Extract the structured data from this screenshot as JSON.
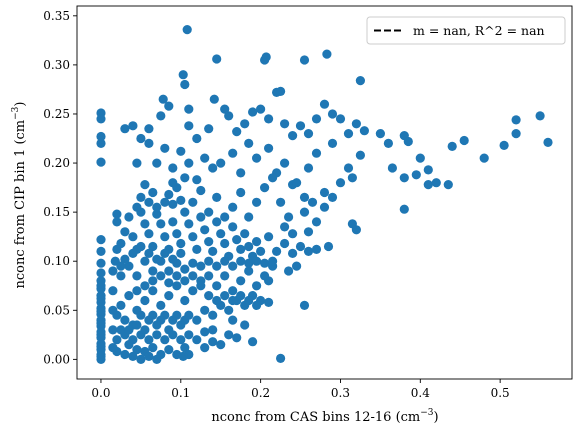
{
  "chart_data": {
    "type": "scatter",
    "title": "",
    "xlabel": {
      "main": "nconc from CAS bins 12-16 (cm",
      "sup": "−3",
      "end": ")"
    },
    "ylabel": {
      "main": "nconc from CIP bin 1 (cm",
      "sup": "−3",
      "end": ")"
    },
    "xlim": [
      -0.03,
      0.59
    ],
    "ylim": [
      -0.02,
      0.36
    ],
    "xticks": [
      0.0,
      0.1,
      0.2,
      0.3,
      0.4,
      0.5
    ],
    "xtick_labels": [
      "0.0",
      "0.1",
      "0.2",
      "0.3",
      "0.4",
      "0.5"
    ],
    "yticks": [
      0.0,
      0.05,
      0.1,
      0.15,
      0.2,
      0.25,
      0.3,
      0.35
    ],
    "ytick_labels": [
      "0.00",
      "0.05",
      "0.10",
      "0.15",
      "0.20",
      "0.25",
      "0.30",
      "0.35"
    ],
    "grid": false,
    "legend": {
      "placement": "top-right",
      "entries": [
        {
          "label": "m = nan, R^2 = nan",
          "style": "dashed-line",
          "color": "#000000"
        }
      ]
    },
    "marker_color": "#1f77b4",
    "points": [
      [
        0.0,
        0.251
      ],
      [
        0.0,
        0.245
      ],
      [
        0.0,
        0.227
      ],
      [
        0.0,
        0.22
      ],
      [
        0.0,
        0.201
      ],
      [
        0.0,
        0.122
      ],
      [
        0.0,
        0.11
      ],
      [
        0.0,
        0.098
      ],
      [
        0.0,
        0.088
      ],
      [
        0.0,
        0.08
      ],
      [
        0.0,
        0.072
      ],
      [
        0.0,
        0.065
      ],
      [
        0.0,
        0.058
      ],
      [
        0.0,
        0.052
      ],
      [
        0.0,
        0.046
      ],
      [
        0.0,
        0.04
      ],
      [
        0.0,
        0.034
      ],
      [
        0.0,
        0.028
      ],
      [
        0.0,
        0.022
      ],
      [
        0.0,
        0.016
      ],
      [
        0.0,
        0.01
      ],
      [
        0.0,
        0.005
      ],
      [
        0.0,
        0.0
      ],
      [
        0.0,
        0.003
      ],
      [
        0.0,
        0.013
      ],
      [
        0.0,
        0.025
      ],
      [
        0.0,
        0.037
      ],
      [
        0.0,
        0.049
      ],
      [
        0.0,
        0.062
      ],
      [
        0.0,
        0.075
      ],
      [
        0.108,
        0.336
      ],
      [
        0.145,
        0.306
      ],
      [
        0.205,
        0.305
      ],
      [
        0.207,
        0.308
      ],
      [
        0.255,
        0.305
      ],
      [
        0.283,
        0.311
      ],
      [
        0.325,
        0.284
      ],
      [
        0.03,
        0.235
      ],
      [
        0.04,
        0.238
      ],
      [
        0.06,
        0.235
      ],
      [
        0.075,
        0.248
      ],
      [
        0.078,
        0.265
      ],
      [
        0.085,
        0.258
      ],
      [
        0.103,
        0.29
      ],
      [
        0.105,
        0.28
      ],
      [
        0.11,
        0.255
      ],
      [
        0.11,
        0.238
      ],
      [
        0.12,
        0.225
      ],
      [
        0.135,
        0.235
      ],
      [
        0.142,
        0.265
      ],
      [
        0.155,
        0.255
      ],
      [
        0.16,
        0.248
      ],
      [
        0.17,
        0.232
      ],
      [
        0.18,
        0.24
      ],
      [
        0.19,
        0.252
      ],
      [
        0.2,
        0.255
      ],
      [
        0.21,
        0.245
      ],
      [
        0.22,
        0.272
      ],
      [
        0.225,
        0.273
      ],
      [
        0.23,
        0.24
      ],
      [
        0.24,
        0.228
      ],
      [
        0.25,
        0.238
      ],
      [
        0.26,
        0.23
      ],
      [
        0.27,
        0.245
      ],
      [
        0.28,
        0.26
      ],
      [
        0.29,
        0.25
      ],
      [
        0.3,
        0.245
      ],
      [
        0.31,
        0.23
      ],
      [
        0.32,
        0.24
      ],
      [
        0.325,
        0.208
      ],
      [
        0.315,
        0.185
      ],
      [
        0.3,
        0.18
      ],
      [
        0.28,
        0.17
      ],
      [
        0.255,
        0.165
      ],
      [
        0.24,
        0.178
      ],
      [
        0.23,
        0.2
      ],
      [
        0.22,
        0.19
      ],
      [
        0.21,
        0.215
      ],
      [
        0.195,
        0.205
      ],
      [
        0.185,
        0.22
      ],
      [
        0.175,
        0.19
      ],
      [
        0.165,
        0.21
      ],
      [
        0.15,
        0.2
      ],
      [
        0.14,
        0.195
      ],
      [
        0.13,
        0.205
      ],
      [
        0.12,
        0.183
      ],
      [
        0.11,
        0.2
      ],
      [
        0.1,
        0.212
      ],
      [
        0.09,
        0.195
      ],
      [
        0.08,
        0.215
      ],
      [
        0.07,
        0.2
      ],
      [
        0.06,
        0.22
      ],
      [
        0.05,
        0.225
      ],
      [
        0.045,
        0.2
      ],
      [
        0.055,
        0.178
      ],
      [
        0.065,
        0.17
      ],
      [
        0.085,
        0.168
      ],
      [
        0.095,
        0.175
      ],
      [
        0.105,
        0.185
      ],
      [
        0.115,
        0.16
      ],
      [
        0.125,
        0.172
      ],
      [
        0.135,
        0.15
      ],
      [
        0.145,
        0.165
      ],
      [
        0.155,
        0.145
      ],
      [
        0.165,
        0.155
      ],
      [
        0.175,
        0.17
      ],
      [
        0.185,
        0.145
      ],
      [
        0.195,
        0.16
      ],
      [
        0.205,
        0.175
      ],
      [
        0.215,
        0.185
      ],
      [
        0.225,
        0.16
      ],
      [
        0.235,
        0.145
      ],
      [
        0.245,
        0.18
      ],
      [
        0.26,
        0.195
      ],
      [
        0.27,
        0.21
      ],
      [
        0.29,
        0.22
      ],
      [
        0.31,
        0.195
      ],
      [
        0.33,
        0.233
      ],
      [
        0.35,
        0.23
      ],
      [
        0.36,
        0.22
      ],
      [
        0.365,
        0.195
      ],
      [
        0.38,
        0.185
      ],
      [
        0.38,
        0.228
      ],
      [
        0.385,
        0.222
      ],
      [
        0.395,
        0.188
      ],
      [
        0.4,
        0.205
      ],
      [
        0.41,
        0.193
      ],
      [
        0.41,
        0.178
      ],
      [
        0.42,
        0.18
      ],
      [
        0.435,
        0.178
      ],
      [
        0.44,
        0.217
      ],
      [
        0.455,
        0.223
      ],
      [
        0.48,
        0.205
      ],
      [
        0.505,
        0.218
      ],
      [
        0.52,
        0.23
      ],
      [
        0.52,
        0.244
      ],
      [
        0.55,
        0.248
      ],
      [
        0.56,
        0.221
      ],
      [
        0.38,
        0.153
      ],
      [
        0.315,
        0.138
      ],
      [
        0.32,
        0.132
      ],
      [
        0.285,
        0.115
      ],
      [
        0.255,
        0.055
      ],
      [
        0.21,
        0.058
      ],
      [
        0.21,
        0.08
      ],
      [
        0.225,
        0.001
      ],
      [
        0.02,
        0.148
      ],
      [
        0.02,
        0.14
      ],
      [
        0.03,
        0.13
      ],
      [
        0.025,
        0.118
      ],
      [
        0.02,
        0.112
      ],
      [
        0.035,
        0.145
      ],
      [
        0.04,
        0.125
      ],
      [
        0.045,
        0.112
      ],
      [
        0.05,
        0.15
      ],
      [
        0.055,
        0.138
      ],
      [
        0.06,
        0.128
      ],
      [
        0.065,
        0.115
      ],
      [
        0.07,
        0.148
      ],
      [
        0.075,
        0.138
      ],
      [
        0.08,
        0.125
      ],
      [
        0.085,
        0.112
      ],
      [
        0.09,
        0.14
      ],
      [
        0.095,
        0.128
      ],
      [
        0.1,
        0.118
      ],
      [
        0.105,
        0.15
      ],
      [
        0.11,
        0.138
      ],
      [
        0.115,
        0.125
      ],
      [
        0.12,
        0.112
      ],
      [
        0.125,
        0.145
      ],
      [
        0.13,
        0.132
      ],
      [
        0.135,
        0.12
      ],
      [
        0.14,
        0.11
      ],
      [
        0.145,
        0.14
      ],
      [
        0.15,
        0.128
      ],
      [
        0.155,
        0.118
      ],
      [
        0.16,
        0.105
      ],
      [
        0.165,
        0.135
      ],
      [
        0.17,
        0.122
      ],
      [
        0.175,
        0.112
      ],
      [
        0.18,
        0.128
      ],
      [
        0.185,
        0.115
      ],
      [
        0.19,
        0.105
      ],
      [
        0.195,
        0.12
      ],
      [
        0.2,
        0.11
      ],
      [
        0.21,
        0.125
      ],
      [
        0.22,
        0.11
      ],
      [
        0.23,
        0.118
      ],
      [
        0.24,
        0.108
      ],
      [
        0.25,
        0.115
      ],
      [
        0.26,
        0.11
      ],
      [
        0.27,
        0.112
      ],
      [
        0.235,
        0.09
      ],
      [
        0.245,
        0.095
      ],
      [
        0.215,
        0.095
      ],
      [
        0.205,
        0.085
      ],
      [
        0.195,
        0.075
      ],
      [
        0.185,
        0.09
      ],
      [
        0.175,
        0.08
      ],
      [
        0.165,
        0.07
      ],
      [
        0.155,
        0.085
      ],
      [
        0.145,
        0.075
      ],
      [
        0.135,
        0.065
      ],
      [
        0.125,
        0.08
      ],
      [
        0.115,
        0.07
      ],
      [
        0.105,
        0.06
      ],
      [
        0.095,
        0.075
      ],
      [
        0.085,
        0.065
      ],
      [
        0.075,
        0.055
      ],
      [
        0.065,
        0.07
      ],
      [
        0.055,
        0.06
      ],
      [
        0.045,
        0.05
      ],
      [
        0.035,
        0.065
      ],
      [
        0.025,
        0.055
      ],
      [
        0.02,
        0.045
      ],
      [
        0.03,
        0.04
      ],
      [
        0.04,
        0.035
      ],
      [
        0.05,
        0.045
      ],
      [
        0.06,
        0.04
      ],
      [
        0.07,
        0.035
      ],
      [
        0.08,
        0.045
      ],
      [
        0.09,
        0.04
      ],
      [
        0.1,
        0.035
      ],
      [
        0.11,
        0.045
      ],
      [
        0.12,
        0.04
      ],
      [
        0.13,
        0.05
      ],
      [
        0.14,
        0.045
      ],
      [
        0.15,
        0.055
      ],
      [
        0.16,
        0.05
      ],
      [
        0.17,
        0.06
      ],
      [
        0.18,
        0.055
      ],
      [
        0.19,
        0.065
      ],
      [
        0.2,
        0.06
      ],
      [
        0.165,
        0.04
      ],
      [
        0.16,
        0.025
      ],
      [
        0.17,
        0.022
      ],
      [
        0.18,
        0.035
      ],
      [
        0.19,
        0.018
      ],
      [
        0.14,
        0.03
      ],
      [
        0.13,
        0.028
      ],
      [
        0.12,
        0.02
      ],
      [
        0.11,
        0.025
      ],
      [
        0.1,
        0.02
      ],
      [
        0.09,
        0.025
      ],
      [
        0.08,
        0.02
      ],
      [
        0.07,
        0.025
      ],
      [
        0.06,
        0.02
      ],
      [
        0.05,
        0.025
      ],
      [
        0.04,
        0.02
      ],
      [
        0.03,
        0.025
      ],
      [
        0.02,
        0.02
      ],
      [
        0.025,
        0.03
      ],
      [
        0.035,
        0.015
      ],
      [
        0.045,
        0.01
      ],
      [
        0.055,
        0.008
      ],
      [
        0.065,
        0.012
      ],
      [
        0.075,
        0.005
      ],
      [
        0.085,
        0.01
      ],
      [
        0.095,
        0.005
      ],
      [
        0.105,
        0.012
      ],
      [
        0.11,
        0.005
      ],
      [
        0.103,
        0.003
      ],
      [
        0.05,
        0.0
      ],
      [
        0.06,
        0.003
      ],
      [
        0.07,
        0.0
      ],
      [
        0.04,
        0.003
      ],
      [
        0.03,
        0.005
      ],
      [
        0.02,
        0.008
      ],
      [
        0.015,
        0.012
      ],
      [
        0.015,
        0.03
      ],
      [
        0.015,
        0.05
      ],
      [
        0.015,
        0.07
      ],
      [
        0.015,
        0.09
      ],
      [
        0.018,
        0.1
      ],
      [
        0.025,
        0.085
      ],
      [
        0.035,
        0.095
      ],
      [
        0.045,
        0.085
      ],
      [
        0.055,
        0.1
      ],
      [
        0.065,
        0.09
      ],
      [
        0.075,
        0.1
      ],
      [
        0.085,
        0.09
      ],
      [
        0.095,
        0.098
      ],
      [
        0.105,
        0.092
      ],
      [
        0.115,
        0.098
      ],
      [
        0.125,
        0.095
      ],
      [
        0.135,
        0.1
      ],
      [
        0.145,
        0.095
      ],
      [
        0.155,
        0.1
      ],
      [
        0.165,
        0.095
      ],
      [
        0.175,
        0.1
      ],
      [
        0.185,
        0.098
      ],
      [
        0.195,
        0.1
      ],
      [
        0.205,
        0.098
      ],
      [
        0.215,
        0.1
      ],
      [
        0.05,
        0.115
      ],
      [
        0.06,
        0.108
      ],
      [
        0.07,
        0.102
      ],
      [
        0.08,
        0.108
      ],
      [
        0.09,
        0.102
      ],
      [
        0.1,
        0.108
      ],
      [
        0.04,
        0.108
      ],
      [
        0.03,
        0.102
      ],
      [
        0.025,
        0.095
      ],
      [
        0.045,
        0.07
      ],
      [
        0.055,
        0.075
      ],
      [
        0.065,
        0.08
      ],
      [
        0.075,
        0.085
      ],
      [
        0.085,
        0.078
      ],
      [
        0.095,
        0.085
      ],
      [
        0.105,
        0.08
      ],
      [
        0.115,
        0.085
      ],
      [
        0.125,
        0.075
      ],
      [
        0.135,
        0.085
      ],
      [
        0.145,
        0.06
      ],
      [
        0.155,
        0.065
      ],
      [
        0.165,
        0.06
      ],
      [
        0.175,
        0.065
      ],
      [
        0.185,
        0.06
      ],
      [
        0.195,
        0.055
      ],
      [
        0.13,
        0.012
      ],
      [
        0.14,
        0.018
      ],
      [
        0.15,
        0.015
      ],
      [
        0.035,
        0.03
      ],
      [
        0.045,
        0.035
      ],
      [
        0.055,
        0.03
      ],
      [
        0.065,
        0.045
      ],
      [
        0.075,
        0.04
      ],
      [
        0.085,
        0.03
      ],
      [
        0.095,
        0.045
      ],
      [
        0.105,
        0.04
      ],
      [
        0.045,
        0.155
      ],
      [
        0.05,
        0.165
      ],
      [
        0.06,
        0.16
      ],
      [
        0.07,
        0.155
      ],
      [
        0.08,
        0.16
      ],
      [
        0.09,
        0.158
      ],
      [
        0.1,
        0.162
      ],
      [
        0.09,
        0.18
      ],
      [
        0.26,
        0.13
      ],
      [
        0.24,
        0.128
      ],
      [
        0.23,
        0.135
      ],
      [
        0.27,
        0.14
      ],
      [
        0.255,
        0.15
      ],
      [
        0.28,
        0.155
      ],
      [
        0.265,
        0.16
      ],
      [
        0.29,
        0.165
      ]
    ]
  }
}
